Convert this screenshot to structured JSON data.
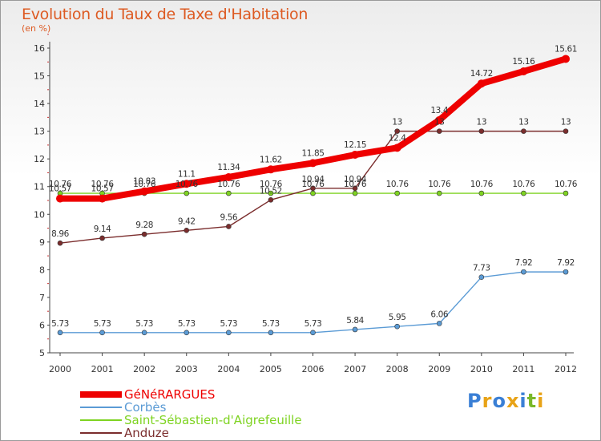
{
  "chart_data": {
    "type": "line",
    "title": "Evolution du Taux de Taxe d'Habitation",
    "subtitle": "(en %)",
    "xlabel": "",
    "ylabel": "",
    "x": [
      "2000",
      "2001",
      "2002",
      "2003",
      "2004",
      "2005",
      "2006",
      "2007",
      "2008",
      "2009",
      "2010",
      "2011",
      "2012"
    ],
    "ylim": [
      5,
      16
    ],
    "yticks": [
      "5",
      "6",
      "7",
      "8",
      "9",
      "10",
      "11",
      "12",
      "13",
      "14",
      "15",
      "16"
    ],
    "grid": false,
    "legend_position": "bottom-left",
    "series": [
      {
        "name": "GéNéRARGUES",
        "color": "#ee0000",
        "values": [
          10.57,
          10.57,
          10.83,
          11.1,
          11.34,
          11.62,
          11.85,
          12.15,
          12.4,
          13.4,
          14.72,
          15.16,
          15.61
        ],
        "labels": [
          "10.57",
          "10.57",
          "10.83",
          "11.1",
          "11.34",
          "11.62",
          "11.85",
          "12.15",
          "12.4",
          "13.4",
          "14.72",
          "15.16",
          "15.61"
        ]
      },
      {
        "name": "Corbès",
        "color": "#5b9bd5",
        "values": [
          5.73,
          5.73,
          5.73,
          5.73,
          5.73,
          5.73,
          5.73,
          5.84,
          5.95,
          6.06,
          7.73,
          7.92,
          7.92
        ],
        "labels": [
          "5.73",
          "5.73",
          "5.73",
          "5.73",
          "5.73",
          "5.73",
          "5.73",
          "5.84",
          "5.95",
          "6.06",
          "7.73",
          "7.92",
          "7.92"
        ]
      },
      {
        "name": "Saint-Sébastien-d'Aigrefeuille",
        "color": "#7ed321",
        "values": [
          10.76,
          10.76,
          10.76,
          10.76,
          10.76,
          10.76,
          10.76,
          10.76,
          10.76,
          10.76,
          10.76,
          10.76,
          10.76
        ],
        "labels": [
          "10.76",
          "10.76",
          "10.76",
          "10.76",
          "10.76",
          "10.76",
          "10.76",
          "10.76",
          "10.76",
          "10.76",
          "10.76",
          "10.76",
          "10.76"
        ]
      },
      {
        "name": "Anduze",
        "color": "#7b2d2d",
        "values": [
          8.96,
          9.14,
          9.28,
          9.42,
          9.56,
          10.52,
          10.94,
          10.94,
          13,
          13,
          13,
          13,
          13
        ],
        "labels": [
          "8.96",
          "9.14",
          "9.28",
          "9.42",
          "9.56",
          "10.52",
          "10.94",
          "10.94",
          "13",
          "13",
          "13",
          "13",
          "13"
        ]
      }
    ]
  },
  "logo": {
    "letters": [
      "P",
      "r",
      "o",
      "x",
      "i",
      "t",
      "i"
    ],
    "colors": [
      "#3a7fd5",
      "#e8a317",
      "#3a7fd5",
      "#e8a317",
      "#3a7fd5",
      "#7ab829",
      "#e8a317"
    ]
  }
}
